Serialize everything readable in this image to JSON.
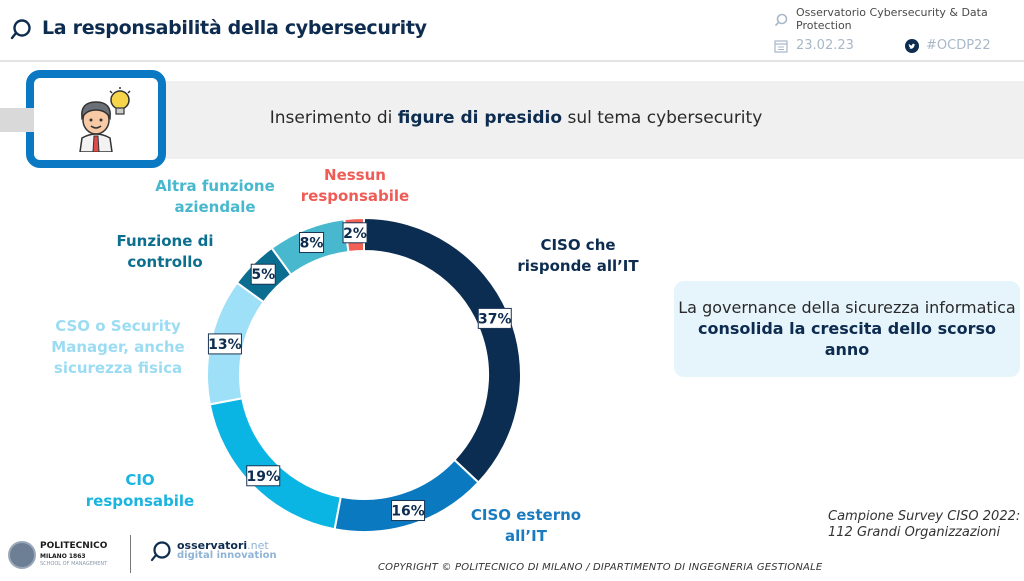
{
  "header": {
    "title": "La responsabilità della cybersecurity",
    "observatory": "Osservatorio Cybersecurity & Data Protection",
    "date": "23.02.23",
    "hashtag": "#OCDP22"
  },
  "banner": {
    "text_before": "Inserimento di ",
    "text_bold": "figure di presidio",
    "text_after": " sul tema cybersecurity"
  },
  "callout": {
    "text_before": "La governance della sicurezza informatica ",
    "text_bold": "consolida la crescita dello scorso anno"
  },
  "sample": {
    "line1": "Campione Survey CISO 2022:",
    "line2": "112 Grandi Organizzazioni"
  },
  "footer": {
    "poli_name": "POLITECNICO",
    "poli_city": "MILANO 1863",
    "poli_school": "SCHOOL OF MANAGEMENT",
    "oss_name": "osservatori",
    "oss_tld": ".net",
    "oss_tagline": "digital innovation",
    "copyright": "COPYRIGHT © POLITECNICO DI MILANO / DIPARTIMENTO DI INGEGNERIA GESTIONALE"
  },
  "chart_data": {
    "type": "pie",
    "subtype": "donut",
    "title": "Inserimento di figure di presidio sul tema cybersecurity",
    "categories": [
      "CISO che risponde all'IT",
      "CISO esterno all'IT",
      "CIO responsabile",
      "CSO o Security Manager, anche sicurezza fisica",
      "Funzione di controllo",
      "Altra funzione aziendale",
      "Nessun responsabile"
    ],
    "values": [
      37,
      16,
      19,
      13,
      5,
      8,
      2
    ],
    "value_labels": [
      "37%",
      "16%",
      "19%",
      "13%",
      "5%",
      "8%",
      "2%"
    ],
    "unit": "%",
    "colors": [
      "#0c2d52",
      "#0b79c0",
      "#0bb5e3",
      "#9ee0f7",
      "#0b6d8f",
      "#47b8ce",
      "#f26158"
    ],
    "label_colors": [
      "#0d2c4f",
      "#1a7bbf",
      "#1ab4e0",
      "#9cdcf3",
      "#0d6f8f",
      "#47b8ce",
      "#ef5b55"
    ],
    "start": "top, clockwise"
  }
}
